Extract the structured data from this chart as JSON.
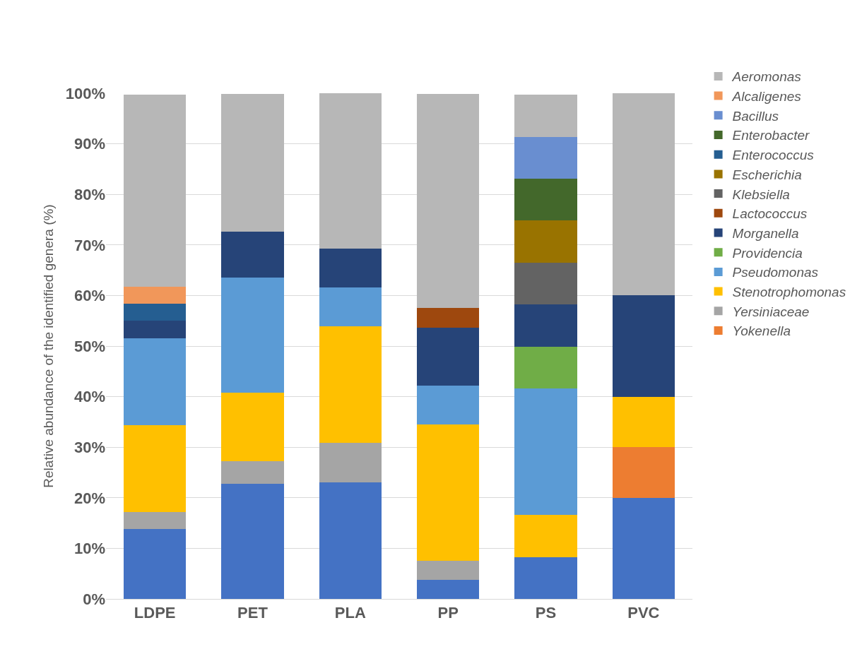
{
  "chart_data": {
    "type": "bar",
    "stacked": true,
    "ylabel": "Relative abundance of the identified genera (%)",
    "categories": [
      "LDPE",
      "PET",
      "PLA",
      "PP",
      "PS",
      "PVC"
    ],
    "ylim": [
      0,
      100
    ],
    "yticks": [
      {
        "value": 0,
        "label": "0%"
      },
      {
        "value": 10,
        "label": "10%"
      },
      {
        "value": 20,
        "label": "20%"
      },
      {
        "value": 30,
        "label": "30%"
      },
      {
        "value": 40,
        "label": "40%"
      },
      {
        "value": 50,
        "label": "50%"
      },
      {
        "value": 60,
        "label": "60%"
      },
      {
        "value": 70,
        "label": "70%"
      },
      {
        "value": 80,
        "label": "80%"
      },
      {
        "value": 90,
        "label": "90%"
      },
      {
        "value": 100,
        "label": "100%"
      }
    ],
    "grid": "y",
    "legend": "right",
    "series": [
      {
        "color": "#4472c4",
        "values": [
          13.8,
          22.7,
          23.1,
          3.8,
          8.3,
          20
        ]
      },
      {
        "name": "Yokenella",
        "color": "#ed7d31",
        "values": [
          null,
          null,
          null,
          null,
          null,
          10
        ]
      },
      {
        "name": "Yersiniaceae",
        "color": "#a5a5a5",
        "values": [
          3.4,
          4.5,
          7.7,
          3.8,
          null,
          null
        ]
      },
      {
        "name": "Stenotrophomonas",
        "color": "#ffc000",
        "values": [
          17.2,
          13.6,
          23.1,
          26.9,
          8.3,
          10
        ]
      },
      {
        "name": "Pseudomonas",
        "color": "#5b9bd5",
        "values": [
          17.2,
          22.7,
          7.7,
          7.7,
          25,
          null
        ]
      },
      {
        "name": "Providencia",
        "color": "#70ad47",
        "values": [
          null,
          null,
          null,
          null,
          8.3,
          null
        ]
      },
      {
        "name": "Morganella",
        "color": "#264478",
        "values": [
          3.4,
          9.1,
          7.7,
          11.5,
          8.3,
          20
        ]
      },
      {
        "name": "Lactococcus",
        "color": "#9e480e",
        "values": [
          null,
          null,
          null,
          3.8,
          null,
          null
        ]
      },
      {
        "name": "Klebsiella",
        "color": "#636363",
        "values": [
          null,
          null,
          null,
          null,
          8.3,
          null
        ]
      },
      {
        "name": "Escherichia",
        "color": "#997300",
        "values": [
          null,
          null,
          null,
          null,
          8.3,
          null
        ]
      },
      {
        "name": "Enterococcus",
        "color": "#255e91",
        "values": [
          3.4,
          null,
          null,
          null,
          null,
          null
        ]
      },
      {
        "name": "Enterobacter",
        "color": "#43682b",
        "values": [
          null,
          null,
          null,
          null,
          8.3,
          null
        ]
      },
      {
        "name": "Bacillus",
        "color": "#698ed0",
        "values": [
          null,
          null,
          null,
          null,
          8.3,
          null
        ]
      },
      {
        "name": "Alcaligenes",
        "color": "#f1975a",
        "values": [
          3.4,
          null,
          null,
          null,
          null,
          null
        ]
      },
      {
        "name": "Aeromonas",
        "color": "#b7b7b7",
        "values": [
          37.9,
          27.3,
          30.8,
          42.3,
          8.3,
          40
        ]
      }
    ]
  }
}
